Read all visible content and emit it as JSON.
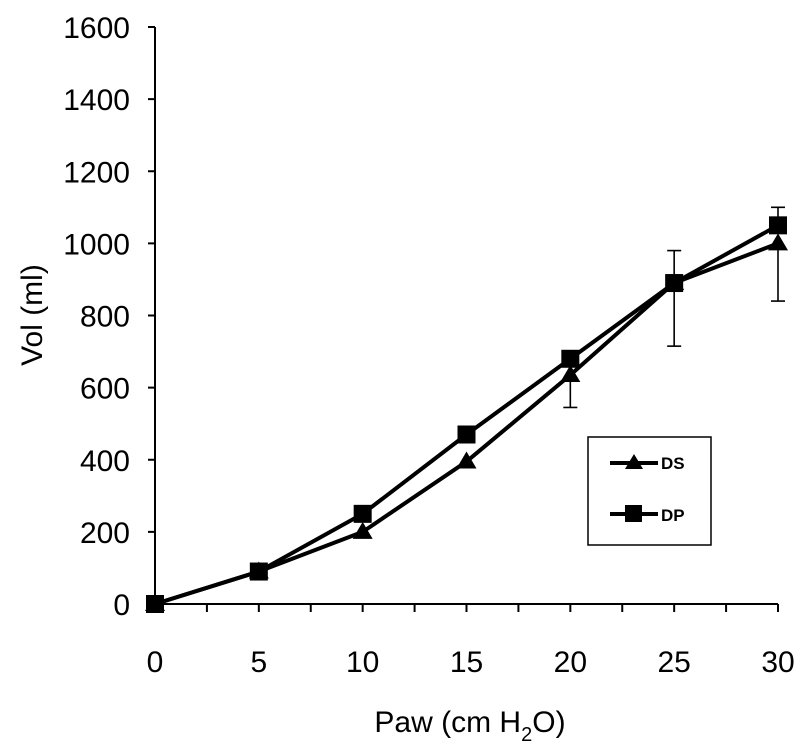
{
  "chart_data": {
    "type": "line",
    "title": "",
    "xlabel": "Paw (cm H2O)",
    "xlabel_parts": {
      "main": "Paw (cm H",
      "sub": "2",
      "tail": "O)"
    },
    "ylabel": "Vol (ml)",
    "xlim": [
      0,
      30
    ],
    "ylim": [
      0,
      1600
    ],
    "xticks": [
      0,
      5,
      10,
      15,
      20,
      25,
      30
    ],
    "yticks": [
      0,
      200,
      400,
      600,
      800,
      1000,
      1200,
      1400,
      1600
    ],
    "x_minor_step": 2.5,
    "grid": false,
    "legend_position": "right-middle",
    "series": [
      {
        "name": "DS",
        "marker": "triangle",
        "x": [
          0,
          5,
          10,
          15,
          20,
          25,
          30
        ],
        "values": [
          0,
          90,
          200,
          395,
          635,
          890,
          1000
        ],
        "error_bars": [
          null,
          null,
          null,
          null,
          {
            "low": 545
          },
          {
            "low": 715
          },
          {
            "low": 840
          }
        ]
      },
      {
        "name": "DP",
        "marker": "square",
        "x": [
          0,
          5,
          10,
          15,
          20,
          25,
          30
        ],
        "values": [
          0,
          90,
          250,
          470,
          680,
          890,
          1050
        ],
        "error_bars": [
          null,
          null,
          null,
          null,
          null,
          {
            "high": 980
          },
          {
            "high": 1100
          }
        ]
      }
    ],
    "colors": {
      "line": "#000000",
      "background": "#ffffff"
    }
  }
}
